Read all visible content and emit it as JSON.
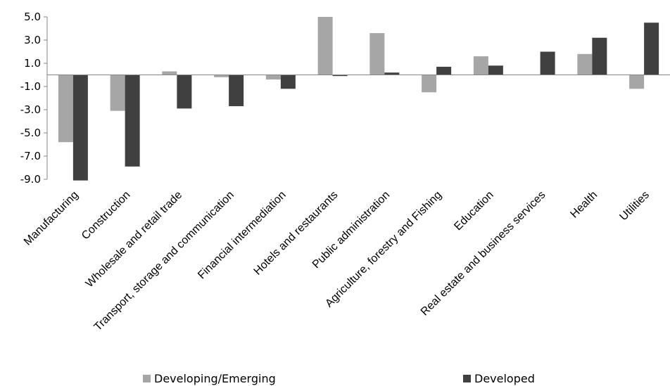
{
  "chart_data": {
    "type": "bar",
    "title": "",
    "xlabel": "",
    "ylabel": "",
    "ylim": [
      -9.0,
      5.0
    ],
    "yticks": [
      "5.0",
      "3.0",
      "1.0",
      "-1.0",
      "-3.0",
      "-5.0",
      "-7.0",
      "-9.0"
    ],
    "grid": false,
    "legend_position": "bottom",
    "categories": [
      "Manufacturing",
      "Construction",
      "Wholesale and retail trade",
      "Transport, storage and communication",
      "Financial intermediation",
      "Hotels and restaurants",
      "Public administration",
      "Agriculture, forestry and Fishing",
      "Education",
      "Real estate and business services",
      "Health",
      "Utilities"
    ],
    "series": [
      {
        "name": "Developing/Emerging",
        "color": "#a6a6a6",
        "values": [
          -5.8,
          -3.1,
          0.3,
          -0.2,
          -0.4,
          5.0,
          3.6,
          -1.5,
          1.6,
          0.0,
          1.8,
          -1.2
        ]
      },
      {
        "name": "Developed",
        "color": "#404040",
        "values": [
          -9.1,
          -7.9,
          -2.9,
          -2.7,
          -1.2,
          -0.1,
          0.2,
          0.7,
          0.8,
          2.0,
          3.2,
          4.5
        ]
      }
    ]
  }
}
